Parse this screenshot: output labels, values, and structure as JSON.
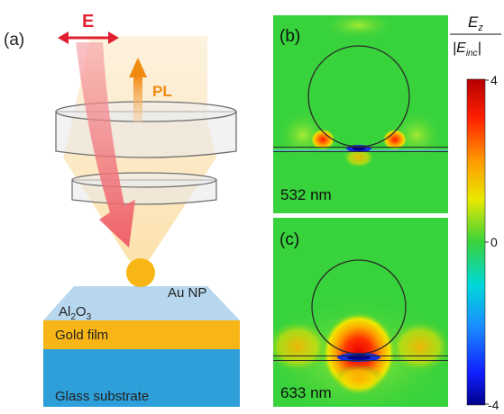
{
  "panel_a": {
    "label": "(a)",
    "efield_label": "E",
    "pl_label": "PL",
    "nanoparticle_label": "Au NP",
    "oxide_label_main": "Al",
    "oxide_sub_1": "2",
    "oxide_mid": "O",
    "oxide_sub_2": "3",
    "gold_label": "Gold film",
    "glass_label": "Glass substrate"
  },
  "panel_b": {
    "label": "(b)",
    "wavelength": "532 nm"
  },
  "panel_c": {
    "label": "(c)",
    "wavelength": "633 nm"
  },
  "colorbar": {
    "title_main": "E",
    "title_sub": "z",
    "denom_main": "E",
    "denom_sub": "inc",
    "tick_max": "4",
    "tick_mid": "0",
    "tick_min": "-4"
  },
  "colors": {
    "gold": "#f8b616",
    "glass": "#2e9fd9",
    "oxide": "#b6d7ee",
    "field_green": "#38d23c",
    "efield_red": "#e02030",
    "pl_orange": "#f08a10"
  }
}
